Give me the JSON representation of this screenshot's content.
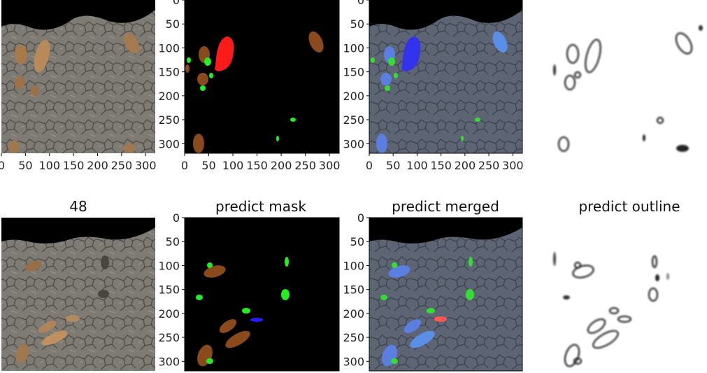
{
  "chart_data": [
    {
      "type": "image",
      "title": "",
      "x_ticks": [
        "0",
        "50",
        "100",
        "150",
        "200",
        "250",
        "300"
      ],
      "y_ticks": [],
      "xlim": [
        0,
        320
      ],
      "ylim": [
        320,
        0
      ]
    },
    {
      "type": "image",
      "title": "",
      "x_ticks": [
        "0",
        "50",
        "100",
        "150",
        "200",
        "250",
        "300"
      ],
      "y_ticks": [
        "0",
        "50",
        "100",
        "150",
        "200",
        "250",
        "300"
      ],
      "xlim": [
        0,
        320
      ],
      "ylim": [
        320,
        0
      ]
    },
    {
      "type": "image",
      "title": "",
      "x_ticks": [
        "0",
        "50",
        "100",
        "150",
        "200",
        "250",
        "300"
      ],
      "y_ticks": [
        "0",
        "50",
        "100",
        "150",
        "200",
        "250",
        "300"
      ],
      "xlim": [
        0,
        320
      ],
      "ylim": [
        320,
        0
      ]
    },
    {
      "type": "image",
      "title": "",
      "x_ticks": [],
      "y_ticks": []
    },
    {
      "type": "image",
      "title": "48",
      "x_ticks": [],
      "y_ticks": [],
      "xlim": [
        0,
        320
      ],
      "ylim": [
        320,
        0
      ]
    },
    {
      "type": "image",
      "title": "predict mask",
      "x_ticks": [],
      "y_ticks": [
        "0",
        "50",
        "100",
        "150",
        "200",
        "250",
        "300"
      ],
      "xlim": [
        0,
        320
      ],
      "ylim": [
        320,
        0
      ]
    },
    {
      "type": "image",
      "title": "predict merged",
      "x_ticks": [],
      "y_ticks": [
        "0",
        "50",
        "100",
        "150",
        "200",
        "250",
        "300"
      ],
      "xlim": [
        0,
        320
      ],
      "ylim": [
        320,
        0
      ]
    },
    {
      "type": "image",
      "title": "predict outline",
      "x_ticks": [],
      "y_ticks": []
    }
  ],
  "colors": {
    "ground": "#7e7a74",
    "ground_dark": "#55524e",
    "sky": "#000000",
    "brown_mask": "#8b4a1c",
    "red_mask": "#ff1a1a",
    "green_mask": "#22ee22",
    "blue_mask": "#2020ff",
    "merged_blue": "#5a7fe0",
    "merged_green": "#33dd33",
    "merged_red": "#ff5555",
    "outline": "#111111"
  }
}
